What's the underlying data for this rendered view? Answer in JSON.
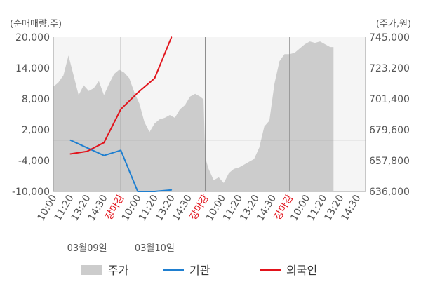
{
  "chart_data": {
    "type": "line",
    "left_axis_label": "(순매매량,주)",
    "right_axis_label": "(주가,원)",
    "left_ylim": [
      -10000,
      20000
    ],
    "left_ticks": [
      20000,
      14000,
      8000,
      2000,
      -4000,
      -10000
    ],
    "left_tick_labels": [
      "20,000",
      "14,000",
      "8,000",
      "2,000",
      "-4,000",
      "-10,000"
    ],
    "right_ylim": [
      636000,
      745000
    ],
    "right_ticks": [
      745000,
      723200,
      701400,
      679600,
      657800,
      636000
    ],
    "right_tick_labels": [
      "745,000",
      "723,200",
      "701,400",
      "679,600",
      "657,800",
      "636,000"
    ],
    "x_ticks": [
      {
        "label": "10:00",
        "close": false
      },
      {
        "label": "11:20",
        "close": false
      },
      {
        "label": "13:20",
        "close": false
      },
      {
        "label": "14:30",
        "close": false
      },
      {
        "label": "장마감",
        "close": true
      },
      {
        "label": "10:00",
        "close": false
      },
      {
        "label": "11:20",
        "close": false
      },
      {
        "label": "13:20",
        "close": false
      },
      {
        "label": "14:30",
        "close": false
      },
      {
        "label": "장마감",
        "close": true
      },
      {
        "label": "10:00",
        "close": false
      },
      {
        "label": "11:20",
        "close": false
      },
      {
        "label": "13:20",
        "close": false
      },
      {
        "label": "14:30",
        "close": false
      },
      {
        "label": "장마감",
        "close": true
      },
      {
        "label": "10:00",
        "close": false
      },
      {
        "label": "11:20",
        "close": false
      },
      {
        "label": "13:20",
        "close": false
      },
      {
        "label": "14:30",
        "close": false
      }
    ],
    "x_range": [
      0,
      18.5
    ],
    "date_labels": [
      {
        "label": "03월09일",
        "x": 2
      },
      {
        "label": "03월10일",
        "x": 6
      }
    ],
    "zero_line": 0,
    "grid": "vertical lines at 장마감",
    "legend": [
      {
        "name": "주가",
        "color": "#cccccc",
        "kind": "area"
      },
      {
        "name": "기관",
        "color": "#1f7fd0",
        "kind": "line"
      },
      {
        "name": "외국인",
        "color": "#e2131b",
        "kind": "line"
      }
    ],
    "series": [
      {
        "name": "주가",
        "axis": "right",
        "color": "#cccccc",
        "x": [
          0,
          0.3,
          0.6,
          0.9,
          1.2,
          1.5,
          1.8,
          2.1,
          2.4,
          2.7,
          3.0,
          3.3,
          3.6,
          3.9,
          4.2,
          4.5,
          4.8,
          5.1,
          5.4,
          5.7,
          6.0,
          6.3,
          6.6,
          6.9,
          7.2,
          7.5,
          7.8,
          8.1,
          8.4,
          8.7,
          8.9,
          9.0,
          9.2,
          9.5,
          9.8,
          10.1,
          10.4,
          10.7,
          11.0,
          11.3,
          11.6,
          11.9,
          12.2,
          12.5,
          12.8,
          13.1,
          13.4,
          13.7,
          14.0,
          14.3,
          14.6,
          14.9,
          15.2,
          15.5,
          15.8,
          16.1,
          16.4,
          16.6
        ],
        "values": [
          710000,
          713000,
          718000,
          732000,
          718000,
          704000,
          711000,
          707000,
          709000,
          714000,
          704000,
          712000,
          719000,
          722000,
          720000,
          716000,
          706000,
          698000,
          685000,
          678000,
          684000,
          687000,
          688000,
          690000,
          688000,
          694000,
          697000,
          703000,
          705000,
          703000,
          701000,
          660000,
          652000,
          644000,
          646000,
          642000,
          649000,
          652000,
          653000,
          655000,
          657000,
          659000,
          667000,
          682000,
          686000,
          712000,
          728000,
          733000,
          733000,
          734000,
          737000,
          740000,
          742000,
          741000,
          742000,
          740000,
          738000,
          738000
        ]
      },
      {
        "name": "기관",
        "axis": "left",
        "color": "#1f7fd0",
        "x": [
          1,
          2,
          3,
          4,
          5,
          6,
          7
        ],
        "values": [
          0,
          -1500,
          -3000,
          -2000,
          -10000,
          -10000,
          -9700
        ]
      },
      {
        "name": "외국인",
        "axis": "left",
        "color": "#e2131b",
        "x": [
          1,
          2,
          3,
          4,
          5,
          6,
          7
        ],
        "values": [
          -2700,
          -2200,
          -500,
          6000,
          9200,
          12000,
          20000
        ]
      }
    ]
  }
}
